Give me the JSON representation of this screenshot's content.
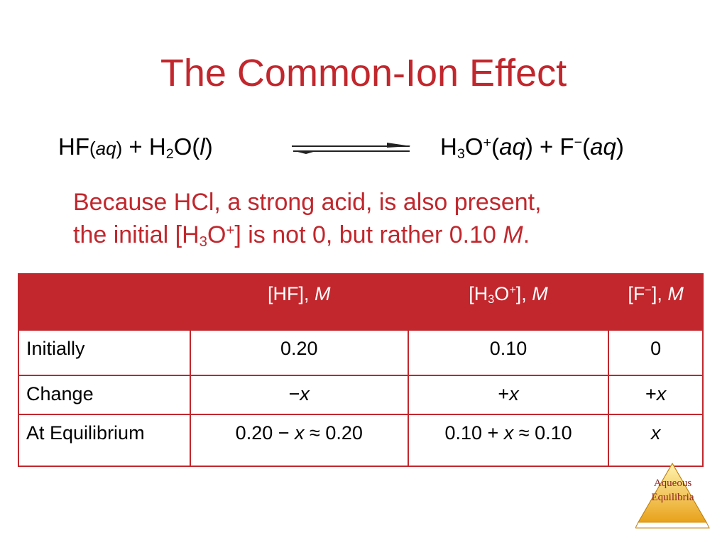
{
  "title": "The Common-Ion Effect",
  "equation": {
    "reactants": [
      "HF",
      "(",
      "aq",
      ")",
      " + H",
      "2",
      "O(",
      "l",
      ")"
    ],
    "products": [
      "H",
      "3",
      "O",
      "+",
      "(",
      "aq",
      ") + F",
      "−",
      "(",
      "aq",
      ")"
    ]
  },
  "paragraph": {
    "lines": [
      [
        "Because HCl, a strong acid, is also present,"
      ],
      [
        "the initial [H",
        "3",
        "O",
        "+",
        "] is not 0, but rather 0.10 ",
        "M",
        "."
      ]
    ]
  },
  "table": {
    "header": [
      [],
      [
        "[HF], ",
        "M"
      ],
      [
        "[H",
        "3",
        "O",
        "+",
        "], ",
        "M"
      ],
      [
        "[F",
        "−",
        "], ",
        "M"
      ]
    ],
    "rows": [
      [
        [
          "Initially"
        ],
        [
          "0.20"
        ],
        [
          "0.10"
        ],
        [
          "0"
        ]
      ],
      [
        [
          "Change"
        ],
        [
          "−",
          "x"
        ],
        [
          "+",
          "x"
        ],
        [
          "+",
          "x"
        ]
      ],
      [
        [
          "At Equilibrium"
        ],
        [
          "0.20 − ",
          "x",
          " ≈ 0.20"
        ],
        [
          "0.10 + ",
          "x",
          " ≈ 0.10"
        ],
        [
          "x"
        ]
      ]
    ]
  },
  "logo": [
    "Aqueous",
    "Equilibria"
  ]
}
